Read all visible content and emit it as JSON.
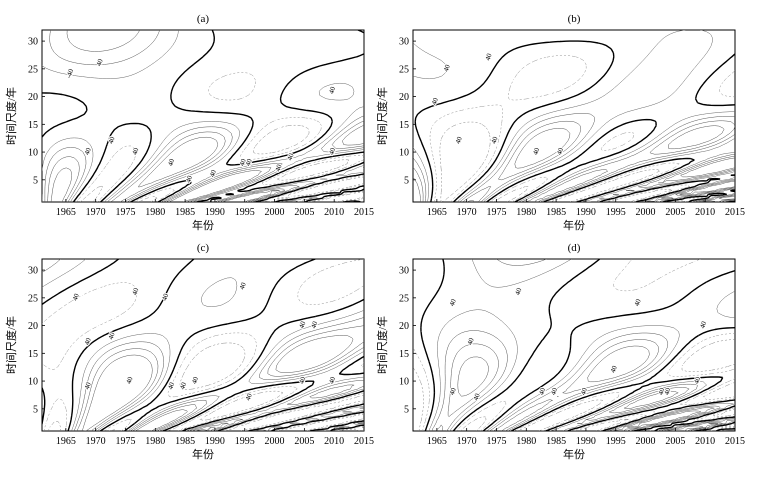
{
  "chart_data": [
    {
      "type": "heatmap",
      "panel_label": "(a)",
      "xlabel": "年份",
      "ylabel": "时间尺度/年",
      "xlim": [
        1961,
        2015
      ],
      "ylim": [
        1,
        32
      ],
      "xticks": [
        1965,
        1970,
        1975,
        1980,
        1985,
        1990,
        1995,
        2000,
        2005,
        2010,
        2015
      ],
      "yticks": [
        5,
        10,
        15,
        20,
        25,
        30
      ],
      "contour_labels": [
        {
          "text": "-40",
          "x": 1966,
          "y": 24
        },
        {
          "text": "40",
          "x": 1971,
          "y": 26
        },
        {
          "text": "40",
          "x": 1969,
          "y": 10
        },
        {
          "text": "40",
          "x": 1973,
          "y": 12
        },
        {
          "text": "40",
          "x": 1977,
          "y": 10
        },
        {
          "text": "40",
          "x": 1983,
          "y": 8
        },
        {
          "text": "40",
          "x": 1986,
          "y": 5
        },
        {
          "text": "40",
          "x": 1990,
          "y": 6
        },
        {
          "text": "40",
          "x": 1995,
          "y": 8
        },
        {
          "text": "40",
          "x": 1996,
          "y": 8
        },
        {
          "text": "40",
          "x": 2001,
          "y": 7
        },
        {
          "text": "40",
          "x": 2003,
          "y": 9
        },
        {
          "text": "40",
          "x": 2010,
          "y": 10
        },
        {
          "text": "40",
          "x": 2010,
          "y": 21
        }
      ]
    },
    {
      "type": "heatmap",
      "panel_label": "(b)",
      "xlabel": "年份",
      "ylabel": "时间尺度/年",
      "xlim": [
        1961,
        2015
      ],
      "ylim": [
        1,
        32
      ],
      "xticks": [
        1965,
        1970,
        1975,
        1980,
        1985,
        1990,
        1995,
        2000,
        2005,
        2010,
        2015
      ],
      "yticks": [
        5,
        10,
        15,
        20,
        25,
        30
      ],
      "contour_labels": [
        {
          "text": "40",
          "x": 1967,
          "y": 25
        },
        {
          "text": "40",
          "x": 1974,
          "y": 27
        },
        {
          "text": "40",
          "x": 1965,
          "y": 19
        },
        {
          "text": "40",
          "x": 1969,
          "y": 12
        },
        {
          "text": "40",
          "x": 1975,
          "y": 12
        },
        {
          "text": "40",
          "x": 1982,
          "y": 10
        },
        {
          "text": "40",
          "x": 1986,
          "y": 10
        }
      ]
    },
    {
      "type": "heatmap",
      "panel_label": "(c)",
      "xlabel": "年份",
      "ylabel": "时间尺度/年",
      "xlim": [
        1961,
        2015
      ],
      "ylim": [
        1,
        32
      ],
      "xticks": [
        1965,
        1970,
        1975,
        1980,
        1985,
        1990,
        1995,
        2000,
        2005,
        2010,
        2015
      ],
      "yticks": [
        5,
        10,
        15,
        20,
        25,
        30
      ],
      "contour_labels": [
        {
          "text": "40",
          "x": 1967,
          "y": 25
        },
        {
          "text": "40",
          "x": 1977,
          "y": 26
        },
        {
          "text": "40",
          "x": 1982,
          "y": 25
        },
        {
          "text": "40",
          "x": 1969,
          "y": 17
        },
        {
          "text": "40",
          "x": 1973,
          "y": 18
        },
        {
          "text": "40",
          "x": 1969,
          "y": 9
        },
        {
          "text": "40",
          "x": 1976,
          "y": 10
        },
        {
          "text": "40",
          "x": 1983,
          "y": 9
        },
        {
          "text": "40",
          "x": 1985,
          "y": 9
        },
        {
          "text": "40",
          "x": 1987,
          "y": 10
        },
        {
          "text": "40",
          "x": 1995,
          "y": 27
        },
        {
          "text": "40",
          "x": 1996,
          "y": 7
        },
        {
          "text": "40",
          "x": 2005,
          "y": 20
        },
        {
          "text": "40",
          "x": 2007,
          "y": 20
        },
        {
          "text": "40",
          "x": 2005,
          "y": 10
        },
        {
          "text": "40",
          "x": 2010,
          "y": 10
        }
      ]
    },
    {
      "type": "heatmap",
      "panel_label": "(d)",
      "xlabel": "年份",
      "ylabel": "时间尺度/年",
      "xlim": [
        1961,
        2015
      ],
      "ylim": [
        1,
        32
      ],
      "xticks": [
        1965,
        1970,
        1975,
        1980,
        1985,
        1990,
        1995,
        2000,
        2005,
        2010,
        2015
      ],
      "yticks": [
        5,
        10,
        15,
        20,
        25,
        30
      ],
      "contour_labels": [
        {
          "text": "40",
          "x": 1968,
          "y": 24
        },
        {
          "text": "40",
          "x": 1979,
          "y": 26
        },
        {
          "text": "40",
          "x": 1971,
          "y": 17
        },
        {
          "text": "40",
          "x": 1968,
          "y": 8
        },
        {
          "text": "40",
          "x": 1972,
          "y": 7
        },
        {
          "text": "40",
          "x": 1983,
          "y": 8
        },
        {
          "text": "40",
          "x": 1985,
          "y": 8
        },
        {
          "text": "40",
          "x": 1990,
          "y": 8
        },
        {
          "text": "40",
          "x": 1995,
          "y": 12
        },
        {
          "text": "40",
          "x": 1999,
          "y": 24
        },
        {
          "text": "40",
          "x": 2003,
          "y": 8
        },
        {
          "text": "40",
          "x": 2004,
          "y": 8
        },
        {
          "text": "40",
          "x": 2010,
          "y": 20
        },
        {
          "text": "40",
          "x": 2009,
          "y": 10
        }
      ]
    }
  ]
}
